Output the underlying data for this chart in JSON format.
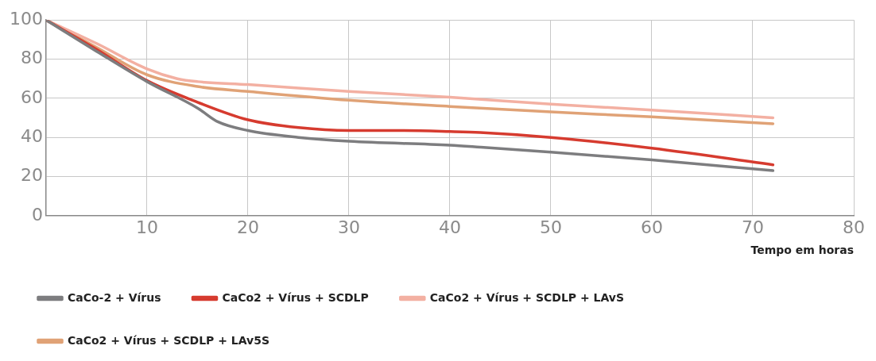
{
  "chart_data": {
    "type": "line",
    "xlabel": "Tempo em horas",
    "xlim": [
      0,
      80
    ],
    "xticks": [
      {
        "value": 0,
        "label": null
      },
      10,
      20,
      30,
      40,
      50,
      60,
      70,
      80
    ],
    "ylim": [
      0,
      100
    ],
    "yticks": [
      0,
      20,
      40,
      60,
      80,
      100
    ],
    "grid": true,
    "legend": "bottom",
    "marker": "none",
    "line_style": "solid",
    "series": [
      {
        "name": "CaCo-2 + Vírus",
        "color": "#7d7d7f",
        "x": [
          0,
          5,
          10,
          15,
          17,
          20,
          25,
          30,
          40,
          43,
          50,
          60,
          72
        ],
        "values": [
          100,
          84,
          68.5,
          55,
          48,
          43.5,
          40,
          38,
          36,
          35,
          32.5,
          28.5,
          23
        ]
      },
      {
        "name": "CaCo2 + Vírus + SCDLP",
        "color": "#d63b2f",
        "x": [
          0,
          5,
          10,
          15,
          20,
          25,
          30,
          35,
          40,
          43,
          50,
          60,
          72
        ],
        "values": [
          100,
          85,
          69,
          58,
          49,
          45,
          43.5,
          43.5,
          43,
          42.5,
          40,
          34.5,
          26
        ]
      },
      {
        "name": "CaCo2 + Vírus + SCDLP + LAvS",
        "color": "#f3b0a2",
        "x": [
          0,
          5,
          10,
          13,
          15,
          20,
          30,
          40,
          50,
          60,
          72
        ],
        "values": [
          100,
          88,
          75,
          70,
          68.5,
          67,
          63.5,
          60.5,
          57,
          54,
          50
        ]
      },
      {
        "name": "CaCo2 + Vírus + SCDLP + LAv5S",
        "color": "#e0a276",
        "x": [
          0,
          5,
          10,
          15,
          20,
          30,
          40,
          50,
          60,
          72
        ],
        "values": [
          100,
          86,
          72,
          66,
          63.5,
          59,
          55.8,
          53,
          50.5,
          47
        ]
      }
    ]
  }
}
